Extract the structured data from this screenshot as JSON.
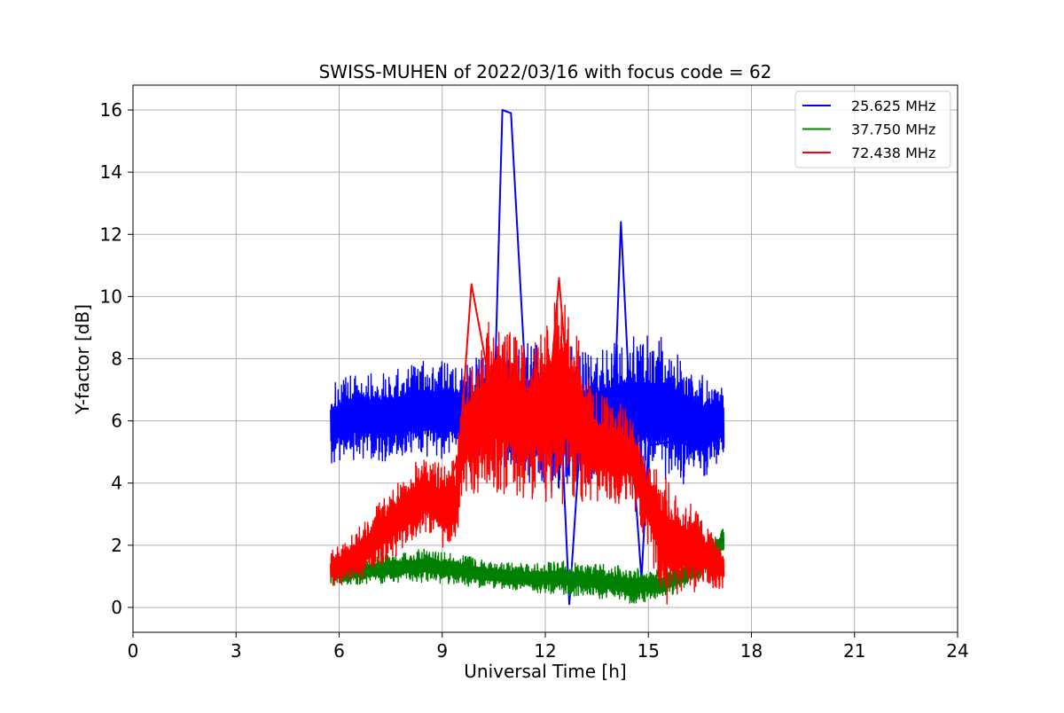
{
  "chart_data": {
    "type": "line",
    "title": "SWISS-MUHEN of 2022/03/16 with focus code = 62",
    "xlabel": "Universal Time [h]",
    "ylabel": "Y-factor [dB]",
    "xlim": [
      0,
      24
    ],
    "ylim": [
      -0.8,
      16.8
    ],
    "xticks": [
      0,
      3,
      6,
      9,
      12,
      15,
      18,
      21,
      24
    ],
    "yticks": [
      0,
      2,
      4,
      6,
      8,
      10,
      12,
      14,
      16
    ],
    "grid": true,
    "legend_position": "top-right",
    "series": [
      {
        "name": "25.625 MHz",
        "color": "#0000ff",
        "x": [
          5.75,
          6.0,
          6.5,
          7.0,
          7.5,
          8.0,
          8.5,
          9.0,
          9.5,
          10.0,
          10.5,
          10.75,
          11.0,
          11.5,
          12.0,
          12.5,
          12.7,
          13.0,
          13.5,
          14.0,
          14.2,
          14.5,
          14.8,
          15.0,
          15.5,
          16.0,
          16.5,
          17.0,
          17.2
        ],
        "y": [
          5.6,
          5.5,
          5.7,
          5.6,
          5.5,
          5.8,
          5.7,
          5.9,
          5.8,
          5.6,
          5.9,
          16.0,
          15.9,
          5.8,
          5.3,
          5.0,
          0.1,
          5.2,
          5.4,
          6.2,
          12.4,
          5.6,
          0.9,
          5.2,
          5.3,
          5.4,
          5.1,
          5.5,
          5.9
        ],
        "envelope": {
          "x": [
            5.75,
            6.5,
            7.5,
            8.5,
            9.5,
            10.5,
            11.5,
            12.5,
            13.5,
            14.5,
            15.5,
            16.5,
            17.2
          ],
          "low": [
            4.6,
            4.7,
            4.7,
            4.8,
            4.6,
            4.4,
            4.0,
            3.5,
            4.1,
            4.0,
            4.0,
            3.9,
            4.9
          ],
          "high": [
            7.2,
            7.6,
            7.6,
            8.0,
            7.8,
            8.4,
            8.6,
            8.5,
            8.2,
            8.8,
            8.7,
            7.6,
            7.0
          ]
        }
      },
      {
        "name": "37.750 MHz",
        "color": "#008000",
        "x": [
          5.75,
          6.5,
          7.5,
          8.5,
          9.5,
          10.5,
          11.5,
          12.5,
          13.5,
          14.5,
          15.5,
          16.0,
          16.5,
          17.0,
          17.2
        ],
        "y": [
          1.0,
          1.0,
          1.1,
          1.2,
          1.1,
          1.0,
          0.9,
          0.8,
          0.8,
          0.7,
          0.7,
          0.9,
          1.4,
          1.9,
          2.2
        ],
        "envelope": {
          "x": [
            5.75,
            6.5,
            7.5,
            8.5,
            9.5,
            10.5,
            11.5,
            12.5,
            13.5,
            14.5,
            15.5,
            16.5,
            17.2
          ],
          "low": [
            0.7,
            0.7,
            0.8,
            0.8,
            0.7,
            0.6,
            0.5,
            0.4,
            0.3,
            0.1,
            0.3,
            0.9,
            1.6
          ],
          "high": [
            1.6,
            1.6,
            1.7,
            1.9,
            1.7,
            1.5,
            1.4,
            1.5,
            1.4,
            1.3,
            1.2,
            1.8,
            2.7
          ]
        }
      },
      {
        "name": "72.438 MHz",
        "color": "#ff0000",
        "x": [
          5.75,
          6.5,
          7.0,
          7.5,
          8.0,
          8.5,
          9.0,
          9.5,
          9.85,
          10.5,
          11.0,
          11.5,
          12.0,
          12.4,
          12.8,
          13.5,
          14.5,
          15.0,
          15.5,
          16.0,
          16.5,
          17.0,
          17.2
        ],
        "y": [
          1.2,
          1.6,
          2.2,
          2.8,
          3.4,
          3.6,
          3.2,
          5.0,
          10.4,
          6.5,
          5.5,
          5.0,
          5.2,
          10.6,
          5.0,
          5.0,
          5.0,
          3.0,
          2.2,
          2.5,
          1.8,
          1.4,
          1.2
        ],
        "envelope": {
          "x": [
            5.75,
            6.5,
            7.5,
            8.5,
            9.0,
            9.4,
            9.6,
            10.5,
            11.5,
            12.5,
            13.5,
            14.5,
            14.9,
            15.5,
            16.5,
            17.2
          ],
          "low": [
            0.6,
            0.8,
            1.5,
            2.4,
            1.8,
            2.0,
            3.5,
            3.6,
            3.5,
            3.2,
            3.4,
            3.3,
            2.2,
            0.0,
            0.6,
            0.6
          ],
          "high": [
            1.8,
            2.5,
            3.8,
            5.0,
            4.6,
            4.8,
            7.6,
            9.5,
            8.4,
            10.5,
            7.0,
            6.4,
            5.0,
            4.2,
            3.0,
            1.8
          ]
        }
      }
    ]
  }
}
